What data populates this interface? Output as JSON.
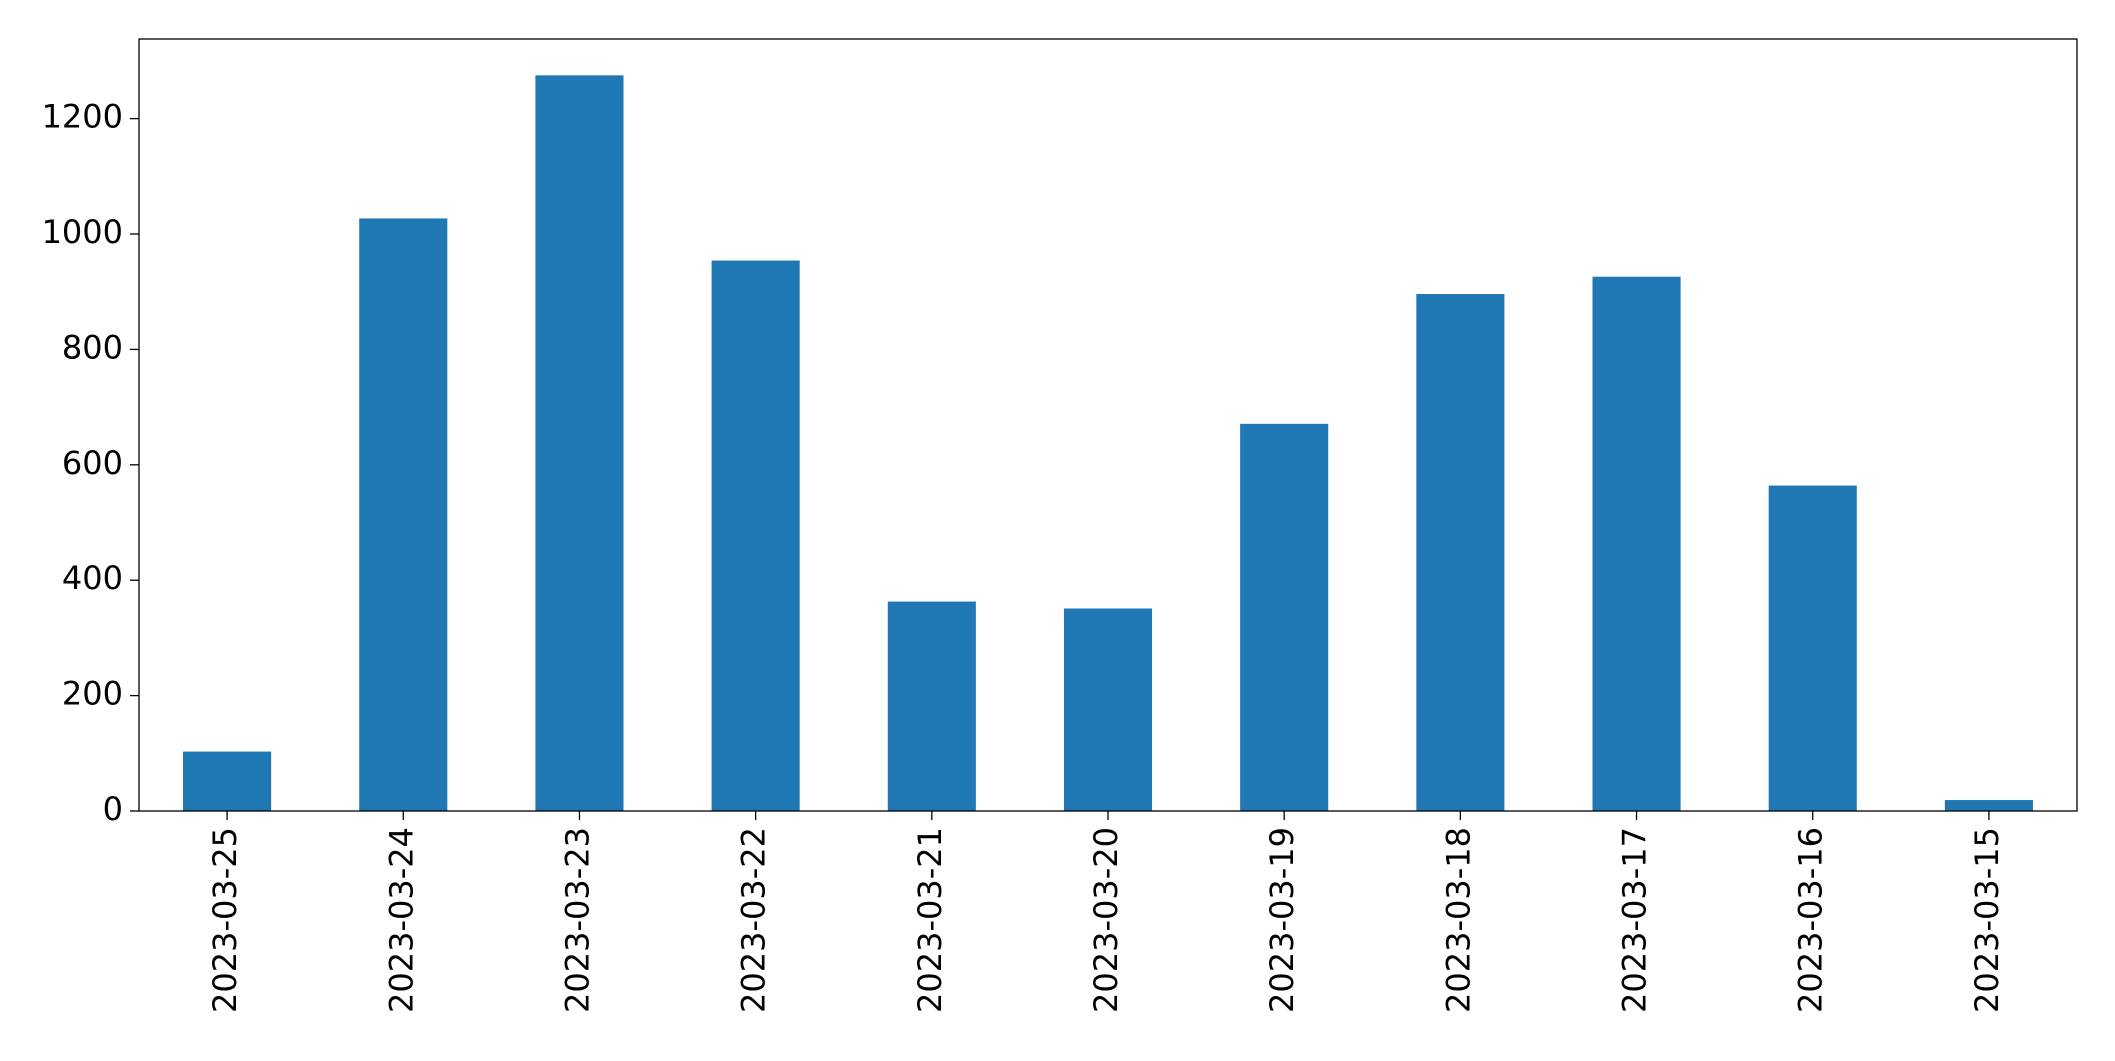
{
  "chart_data": {
    "type": "bar",
    "categories": [
      "2023-03-25",
      "2023-03-24",
      "2023-03-23",
      "2023-03-22",
      "2023-03-21",
      "2023-03-20",
      "2023-03-19",
      "2023-03-18",
      "2023-03-17",
      "2023-03-16",
      "2023-03-15"
    ],
    "values": [
      103,
      1027,
      1275,
      954,
      363,
      351,
      671,
      896,
      926,
      564,
      19
    ],
    "color": "#1f77b4",
    "ylim": [
      0,
      1338
    ],
    "yticks": [
      0,
      200,
      400,
      600,
      800,
      1000,
      1200
    ],
    "grid": false
  }
}
